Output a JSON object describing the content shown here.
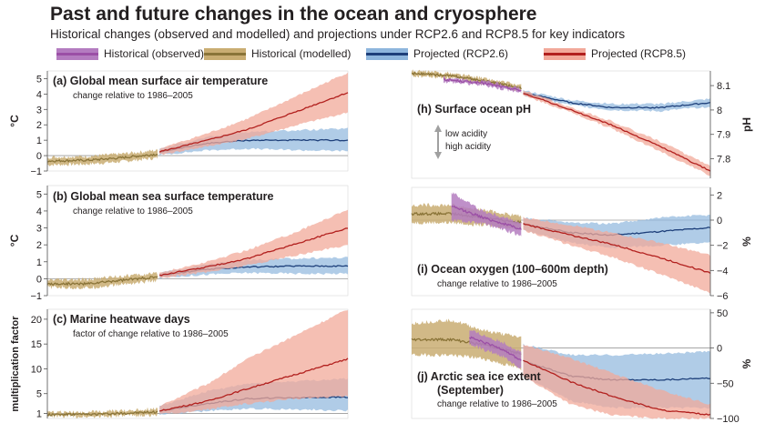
{
  "title": "Past and future changes in the ocean and cryosphere",
  "subtitle": "Historical changes (observed and modelled) and projections under RCP2.6 and RCP8.5 for key indicators",
  "legend": [
    {
      "label": "Historical (observed)",
      "color": "#9b4fa6",
      "band": "#b47cc0"
    },
    {
      "label": "Historical (modelled)",
      "color": "#8a7438",
      "band": "#c9ad72"
    },
    {
      "label": "Projected (RCP2.6)",
      "color": "#1d3f7a",
      "band": "#8eb6dd"
    },
    {
      "label": "Projected (RCP8.5)",
      "color": "#b2201e",
      "band": "#f2a99a"
    }
  ],
  "chart_data": [
    {
      "id": "a",
      "type": "area",
      "title": "(a)  Global mean surface air temperature",
      "subtitle": "change relative to 1986–2005",
      "ylabel": "°C",
      "ylim": [
        -1,
        5.5
      ],
      "yticks": [
        -1,
        0,
        1,
        2,
        3,
        4,
        5
      ],
      "xlim": [
        1950,
        2100
      ],
      "series": [
        {
          "name": "Historical (modelled)",
          "x": [
            1950,
            1970,
            1986,
            2005
          ],
          "values": [
            -0.35,
            -0.3,
            -0.15,
            0.1
          ],
          "low": [
            -0.6,
            -0.55,
            -0.4,
            -0.15
          ],
          "high": [
            -0.1,
            -0.05,
            0.1,
            0.35
          ]
        },
        {
          "name": "Projected (RCP2.6)",
          "x": [
            2006,
            2030,
            2050,
            2075,
            2100
          ],
          "values": [
            0.25,
            0.8,
            1.0,
            1.0,
            1.0
          ],
          "low": [
            0.05,
            0.35,
            0.45,
            0.35,
            0.3
          ],
          "high": [
            0.45,
            1.2,
            1.55,
            1.65,
            1.75
          ]
        },
        {
          "name": "Projected (RCP8.5)",
          "x": [
            2006,
            2030,
            2050,
            2075,
            2100
          ],
          "values": [
            0.25,
            1.0,
            1.7,
            2.9,
            4.1
          ],
          "low": [
            0.05,
            0.6,
            1.1,
            2.0,
            2.8
          ],
          "high": [
            0.45,
            1.45,
            2.4,
            3.9,
            5.4
          ]
        }
      ]
    },
    {
      "id": "b",
      "type": "area",
      "title": "(b)  Global mean sea surface temperature",
      "subtitle": "change relative to 1986–2005",
      "ylabel": "°C",
      "ylim": [
        -1,
        5.5
      ],
      "yticks": [
        -1,
        0,
        1,
        2,
        3,
        4,
        5
      ],
      "xlim": [
        1950,
        2100
      ],
      "series": [
        {
          "name": "Historical (modelled)",
          "x": [
            1950,
            1970,
            1986,
            2005
          ],
          "values": [
            -0.3,
            -0.3,
            -0.1,
            0.1
          ],
          "low": [
            -0.5,
            -0.55,
            -0.35,
            -0.1
          ],
          "high": [
            -0.1,
            -0.05,
            0.15,
            0.3
          ]
        },
        {
          "name": "Projected (RCP2.6)",
          "x": [
            2006,
            2030,
            2050,
            2075,
            2100
          ],
          "values": [
            0.2,
            0.55,
            0.7,
            0.75,
            0.75
          ],
          "low": [
            0.05,
            0.25,
            0.35,
            0.3,
            0.3
          ],
          "high": [
            0.35,
            0.85,
            1.1,
            1.2,
            1.25
          ]
        },
        {
          "name": "Projected (RCP8.5)",
          "x": [
            2006,
            2030,
            2050,
            2075,
            2100
          ],
          "values": [
            0.2,
            0.7,
            1.2,
            2.1,
            3.0
          ],
          "low": [
            0.05,
            0.4,
            0.8,
            1.4,
            2.0
          ],
          "high": [
            0.35,
            1.0,
            1.7,
            2.8,
            4.1
          ]
        }
      ]
    },
    {
      "id": "c",
      "type": "area",
      "title": "(c)  Marine heatwave days",
      "subtitle": "factor of change relative to 1986–2005",
      "ylabel": "multiplication factor",
      "ylim": [
        0,
        22
      ],
      "yticks": [
        1,
        5,
        10,
        15,
        20
      ],
      "xlim": [
        1950,
        2100
      ],
      "series": [
        {
          "name": "Historical (modelled)",
          "x": [
            1950,
            1970,
            1986,
            2005
          ],
          "values": [
            0.8,
            0.8,
            1.0,
            1.3
          ],
          "low": [
            0.4,
            0.4,
            0.5,
            0.7
          ],
          "high": [
            1.2,
            1.3,
            1.5,
            2.0
          ]
        },
        {
          "name": "Projected (RCP2.6)",
          "x": [
            2006,
            2030,
            2050,
            2075,
            2100
          ],
          "values": [
            1.5,
            3.0,
            4.0,
            4.2,
            4.3
          ],
          "low": [
            0.8,
            1.5,
            2.0,
            1.8,
            1.6
          ],
          "high": [
            2.5,
            5.5,
            7.0,
            7.5,
            8.0
          ]
        },
        {
          "name": "Projected (RCP8.5)",
          "x": [
            2006,
            2030,
            2050,
            2075,
            2100
          ],
          "values": [
            1.5,
            3.5,
            6.0,
            9.0,
            12.0
          ],
          "low": [
            0.8,
            1.8,
            3.0,
            4.0,
            4.5
          ],
          "high": [
            2.5,
            7.0,
            12.0,
            17.0,
            22.0
          ]
        }
      ]
    },
    {
      "id": "h",
      "type": "area",
      "title": "(h)  Surface ocean pH",
      "ylabel": "pH",
      "ylim": [
        7.72,
        8.16
      ],
      "yticks": [
        7.8,
        7.9,
        8.0,
        8.1
      ],
      "xlim": [
        1950,
        2100
      ],
      "arrow_labels": [
        "low acidity",
        "high acidity"
      ],
      "series": [
        {
          "name": "Historical (modelled)",
          "x": [
            1950,
            1970,
            1986,
            2005
          ],
          "values": [
            8.15,
            8.14,
            8.12,
            8.09
          ],
          "low": [
            8.14,
            8.13,
            8.11,
            8.08
          ],
          "high": [
            8.16,
            8.15,
            8.13,
            8.1
          ]
        },
        {
          "name": "Historical (observed)",
          "x": [
            1966,
            1986,
            2005
          ],
          "values": [
            8.125,
            8.11,
            8.08
          ],
          "low": [
            8.117,
            8.102,
            8.072
          ],
          "high": [
            8.133,
            8.118,
            8.088
          ]
        },
        {
          "name": "Projected (RCP2.6)",
          "x": [
            2006,
            2030,
            2050,
            2075,
            2100
          ],
          "values": [
            8.07,
            8.03,
            8.01,
            8.01,
            8.03
          ],
          "low": [
            8.06,
            8.02,
            8.0,
            7.995,
            8.015
          ],
          "high": [
            8.08,
            8.04,
            8.025,
            8.025,
            8.045
          ]
        },
        {
          "name": "Projected (RCP8.5)",
          "x": [
            2006,
            2030,
            2050,
            2075,
            2100
          ],
          "values": [
            8.07,
            8.0,
            7.94,
            7.85,
            7.75
          ],
          "low": [
            8.06,
            7.99,
            7.925,
            7.83,
            7.73
          ],
          "high": [
            8.08,
            8.01,
            7.955,
            7.87,
            7.77
          ]
        }
      ]
    },
    {
      "id": "i",
      "type": "area",
      "title": "(i)  Ocean oxygen (100–600m depth)",
      "subtitle": "change relative to 1986–2005",
      "ylabel": "%",
      "ylim": [
        -6,
        2.6
      ],
      "yticks": [
        -6,
        -4,
        -2,
        0,
        2
      ],
      "xlim": [
        1950,
        2100
      ],
      "series": [
        {
          "name": "Historical (modelled)",
          "x": [
            1950,
            1970,
            1986,
            2005
          ],
          "values": [
            0.5,
            0.5,
            0.2,
            -0.2
          ],
          "low": [
            -0.2,
            -0.2,
            -0.4,
            -0.7
          ],
          "high": [
            1.2,
            1.2,
            0.8,
            0.3
          ]
        },
        {
          "name": "Historical (observed)",
          "x": [
            1970,
            1986,
            2005
          ],
          "values": [
            1.1,
            0.2,
            -0.7
          ],
          "low": [
            0.0,
            -0.3,
            -1.2
          ],
          "high": [
            2.2,
            0.7,
            -0.2
          ]
        },
        {
          "name": "Projected (RCP2.6)",
          "x": [
            2006,
            2030,
            2050,
            2075,
            2100
          ],
          "values": [
            -0.3,
            -1.0,
            -1.2,
            -0.9,
            -0.6
          ],
          "low": [
            -0.8,
            -1.8,
            -2.2,
            -2.0,
            -1.8
          ],
          "high": [
            0.2,
            -0.2,
            -0.3,
            0.2,
            0.4
          ]
        },
        {
          "name": "Projected (RCP8.5)",
          "x": [
            2006,
            2030,
            2050,
            2075,
            2100
          ],
          "values": [
            -0.3,
            -1.2,
            -1.9,
            -3.0,
            -4.2
          ],
          "low": [
            -0.8,
            -2.0,
            -2.9,
            -4.3,
            -5.8
          ],
          "high": [
            0.2,
            -0.4,
            -1.0,
            -1.8,
            -2.8
          ]
        }
      ]
    },
    {
      "id": "j",
      "type": "area",
      "title": "(j)  Arctic sea ice extent",
      "title2": "(September)",
      "subtitle": "change relative to 1986–2005",
      "ylabel": "%",
      "ylim": [
        -100,
        55
      ],
      "yticks": [
        -100,
        -50,
        0,
        50
      ],
      "xlim": [
        1950,
        2100
      ],
      "series": [
        {
          "name": "Historical (modelled)",
          "x": [
            1950,
            1970,
            1986,
            2005
          ],
          "values": [
            12,
            12,
            5,
            -8
          ],
          "low": [
            -10,
            -10,
            -15,
            -30
          ],
          "high": [
            35,
            40,
            25,
            15
          ]
        },
        {
          "name": "Historical (observed)",
          "x": [
            1979,
            1986,
            1996,
            2005
          ],
          "values": [
            15,
            8,
            -2,
            -18
          ],
          "low": [
            5,
            -2,
            -12,
            -30
          ],
          "high": [
            25,
            18,
            8,
            -6
          ]
        },
        {
          "name": "Projected (RCP2.6)",
          "x": [
            2006,
            2030,
            2050,
            2075,
            2100
          ],
          "values": [
            -18,
            -40,
            -45,
            -45,
            -43
          ],
          "low": [
            -40,
            -75,
            -85,
            -85,
            -85
          ],
          "high": [
            5,
            -10,
            -10,
            -8,
            -5
          ]
        },
        {
          "name": "Projected (RCP8.5)",
          "x": [
            2006,
            2030,
            2050,
            2075,
            2100
          ],
          "values": [
            -18,
            -48,
            -68,
            -88,
            -95
          ],
          "low": [
            -40,
            -80,
            -95,
            -100,
            -100
          ],
          "high": [
            5,
            -15,
            -35,
            -60,
            -80
          ]
        }
      ]
    }
  ]
}
